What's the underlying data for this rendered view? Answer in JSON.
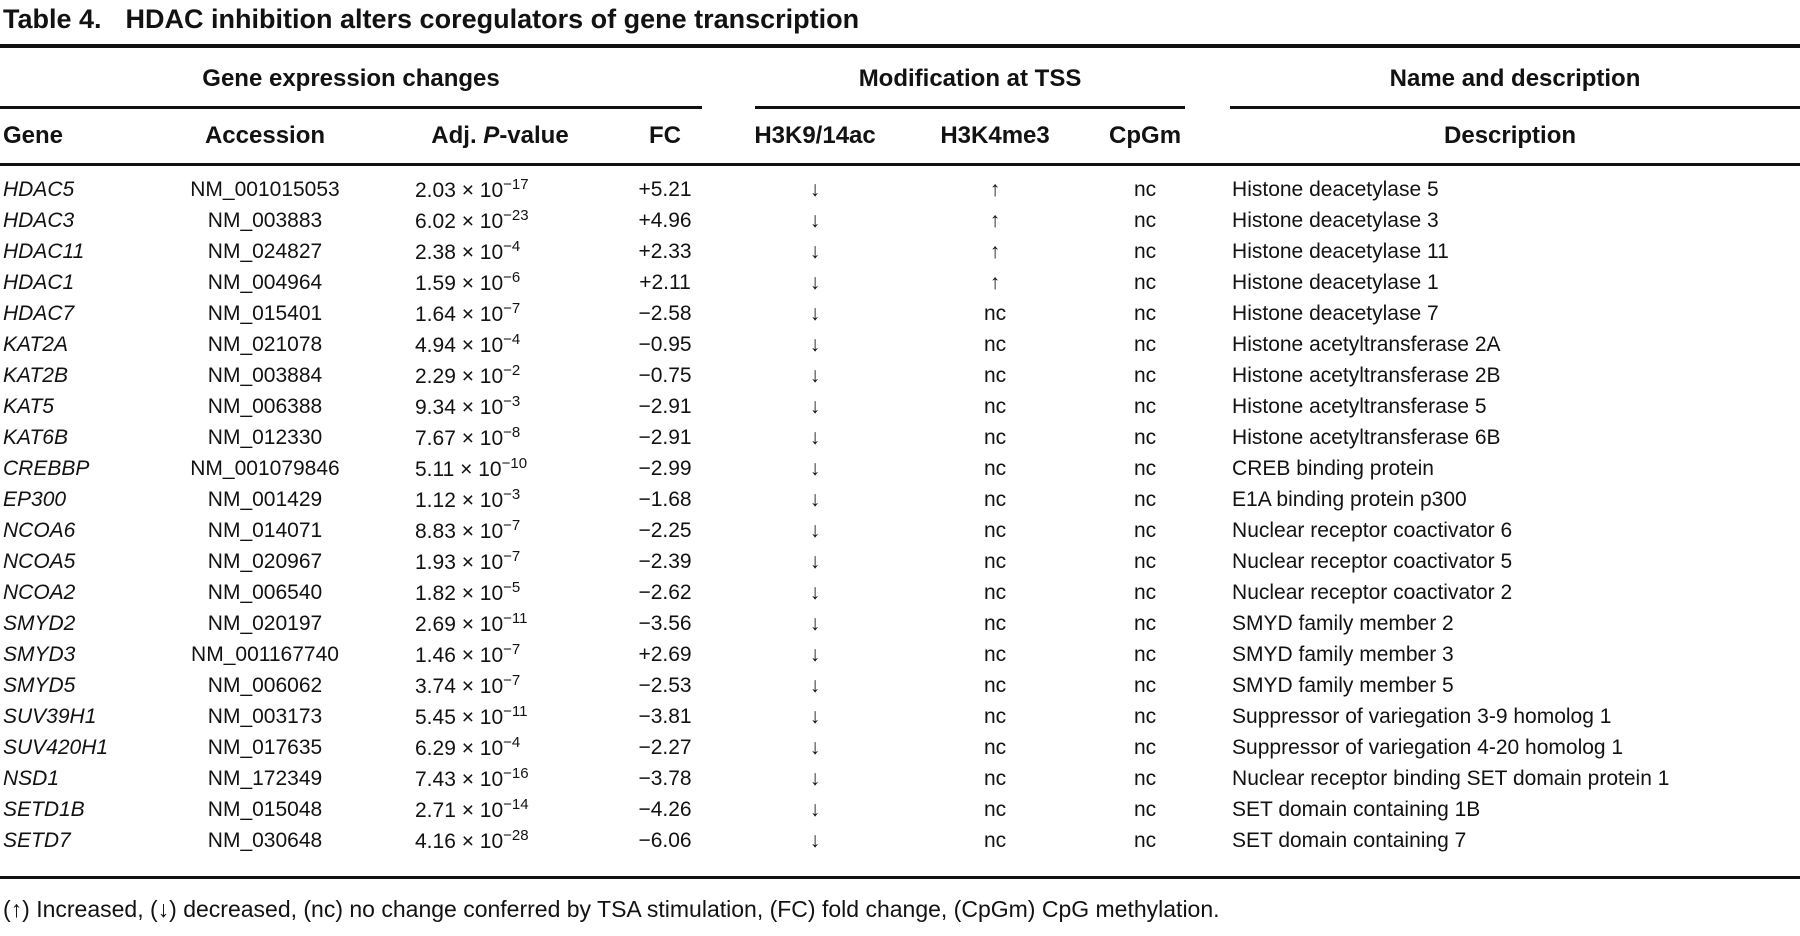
{
  "title": {
    "label": "Table 4.",
    "text": "HDAC inhibition alters coregulators of gene transcription"
  },
  "table": {
    "group_headers": {
      "expression": "Gene expression changes",
      "modification": "Modification at TSS",
      "name_desc": "Name and description"
    },
    "column_headers": {
      "gene": "Gene",
      "accession": "Accession",
      "pvalue_pre": "Adj. ",
      "pvalue_italic": "P",
      "pvalue_post": "-value",
      "fc": "FC",
      "h3k9_14ac": "H3K9/14ac",
      "h3k4me3": "H3K4me3",
      "cpgm": "CpGm",
      "description": "Description"
    },
    "rows": [
      {
        "gene": "HDAC5",
        "accession": "NM_001015053",
        "pv_mantissa": "2.03",
        "pv_exponent": "−17",
        "fc": "+5.21",
        "h3k9_14ac": "↓",
        "h3k4me3": "↑",
        "cpgm": "nc",
        "description": "Histone deacetylase 5"
      },
      {
        "gene": "HDAC3",
        "accession": "NM_003883",
        "pv_mantissa": "6.02",
        "pv_exponent": "−23",
        "fc": "+4.96",
        "h3k9_14ac": "↓",
        "h3k4me3": "↑",
        "cpgm": "nc",
        "description": "Histone deacetylase 3"
      },
      {
        "gene": "HDAC11",
        "accession": "NM_024827",
        "pv_mantissa": "2.38",
        "pv_exponent": "−4",
        "fc": "+2.33",
        "h3k9_14ac": "↓",
        "h3k4me3": "↑",
        "cpgm": "nc",
        "description": "Histone deacetylase 11"
      },
      {
        "gene": "HDAC1",
        "accession": "NM_004964",
        "pv_mantissa": "1.59",
        "pv_exponent": "−6",
        "fc": "+2.11",
        "h3k9_14ac": "↓",
        "h3k4me3": "↑",
        "cpgm": "nc",
        "description": "Histone deacetylase 1"
      },
      {
        "gene": "HDAC7",
        "accession": "NM_015401",
        "pv_mantissa": "1.64",
        "pv_exponent": "−7",
        "fc": "−2.58",
        "h3k9_14ac": "↓",
        "h3k4me3": "nc",
        "cpgm": "nc",
        "description": "Histone deacetylase 7"
      },
      {
        "gene": "KAT2A",
        "accession": "NM_021078",
        "pv_mantissa": "4.94",
        "pv_exponent": "−4",
        "fc": "−0.95",
        "h3k9_14ac": "↓",
        "h3k4me3": "nc",
        "cpgm": "nc",
        "description": "Histone acetyltransferase 2A"
      },
      {
        "gene": "KAT2B",
        "accession": "NM_003884",
        "pv_mantissa": "2.29",
        "pv_exponent": "−2",
        "fc": "−0.75",
        "h3k9_14ac": "↓",
        "h3k4me3": "nc",
        "cpgm": "nc",
        "description": "Histone acetyltransferase 2B"
      },
      {
        "gene": "KAT5",
        "accession": "NM_006388",
        "pv_mantissa": "9.34",
        "pv_exponent": "−3",
        "fc": "−2.91",
        "h3k9_14ac": "↓",
        "h3k4me3": "nc",
        "cpgm": "nc",
        "description": "Histone acetyltransferase 5"
      },
      {
        "gene": "KAT6B",
        "accession": "NM_012330",
        "pv_mantissa": "7.67",
        "pv_exponent": "−8",
        "fc": "−2.91",
        "h3k9_14ac": "↓",
        "h3k4me3": "nc",
        "cpgm": "nc",
        "description": "Histone acetyltransferase 6B"
      },
      {
        "gene": "CREBBP",
        "accession": "NM_001079846",
        "pv_mantissa": "5.11",
        "pv_exponent": "−10",
        "fc": "−2.99",
        "h3k9_14ac": "↓",
        "h3k4me3": "nc",
        "cpgm": "nc",
        "description": "CREB binding protein"
      },
      {
        "gene": "EP300",
        "accession": "NM_001429",
        "pv_mantissa": "1.12",
        "pv_exponent": "−3",
        "fc": "−1.68",
        "h3k9_14ac": "↓",
        "h3k4me3": "nc",
        "cpgm": "nc",
        "description": "E1A binding protein p300"
      },
      {
        "gene": "NCOA6",
        "accession": "NM_014071",
        "pv_mantissa": "8.83",
        "pv_exponent": "−7",
        "fc": "−2.25",
        "h3k9_14ac": "↓",
        "h3k4me3": "nc",
        "cpgm": "nc",
        "description": "Nuclear receptor coactivator 6"
      },
      {
        "gene": "NCOA5",
        "accession": "NM_020967",
        "pv_mantissa": "1.93",
        "pv_exponent": "−7",
        "fc": "−2.39",
        "h3k9_14ac": "↓",
        "h3k4me3": "nc",
        "cpgm": "nc",
        "description": "Nuclear receptor coactivator 5"
      },
      {
        "gene": "NCOA2",
        "accession": "NM_006540",
        "pv_mantissa": "1.82",
        "pv_exponent": "−5",
        "fc": "−2.62",
        "h3k9_14ac": "↓",
        "h3k4me3": "nc",
        "cpgm": "nc",
        "description": "Nuclear receptor coactivator 2"
      },
      {
        "gene": "SMYD2",
        "accession": "NM_020197",
        "pv_mantissa": "2.69",
        "pv_exponent": "−11",
        "fc": "−3.56",
        "h3k9_14ac": "↓",
        "h3k4me3": "nc",
        "cpgm": "nc",
        "description": "SMYD family member 2"
      },
      {
        "gene": "SMYD3",
        "accession": "NM_001167740",
        "pv_mantissa": "1.46",
        "pv_exponent": "−7",
        "fc": "+2.69",
        "h3k9_14ac": "↓",
        "h3k4me3": "nc",
        "cpgm": "nc",
        "description": "SMYD family member 3"
      },
      {
        "gene": "SMYD5",
        "accession": "NM_006062",
        "pv_mantissa": "3.74",
        "pv_exponent": "−7",
        "fc": "−2.53",
        "h3k9_14ac": "↓",
        "h3k4me3": "nc",
        "cpgm": "nc",
        "description": "SMYD family member 5"
      },
      {
        "gene": "SUV39H1",
        "accession": "NM_003173",
        "pv_mantissa": "5.45",
        "pv_exponent": "−11",
        "fc": "−3.81",
        "h3k9_14ac": "↓",
        "h3k4me3": "nc",
        "cpgm": "nc",
        "description": "Suppressor of variegation 3-9 homolog 1"
      },
      {
        "gene": "SUV420H1",
        "accession": "NM_017635",
        "pv_mantissa": "6.29",
        "pv_exponent": "−4",
        "fc": "−2.27",
        "h3k9_14ac": "↓",
        "h3k4me3": "nc",
        "cpgm": "nc",
        "description": "Suppressor of variegation 4-20 homolog 1"
      },
      {
        "gene": "NSD1",
        "accession": "NM_172349",
        "pv_mantissa": "7.43",
        "pv_exponent": "−16",
        "fc": "−3.78",
        "h3k9_14ac": "↓",
        "h3k4me3": "nc",
        "cpgm": "nc",
        "description": "Nuclear receptor binding SET domain protein 1"
      },
      {
        "gene": "SETD1B",
        "accession": "NM_015048",
        "pv_mantissa": "2.71",
        "pv_exponent": "−14",
        "fc": "−4.26",
        "h3k9_14ac": "↓",
        "h3k4me3": "nc",
        "cpgm": "nc",
        "description": "SET domain containing 1B"
      },
      {
        "gene": "SETD7",
        "accession": "NM_030648",
        "pv_mantissa": "4.16",
        "pv_exponent": "−28",
        "fc": "−6.06",
        "h3k9_14ac": "↓",
        "h3k4me3": "nc",
        "cpgm": "nc",
        "description": "SET domain containing 7"
      }
    ],
    "multiplier_text": " × 10"
  },
  "footnote": "(↑) Increased, (↓) decreased, (nc) no change conferred by TSA stimulation, (FC) fold change, (CpGm) CpG methylation."
}
